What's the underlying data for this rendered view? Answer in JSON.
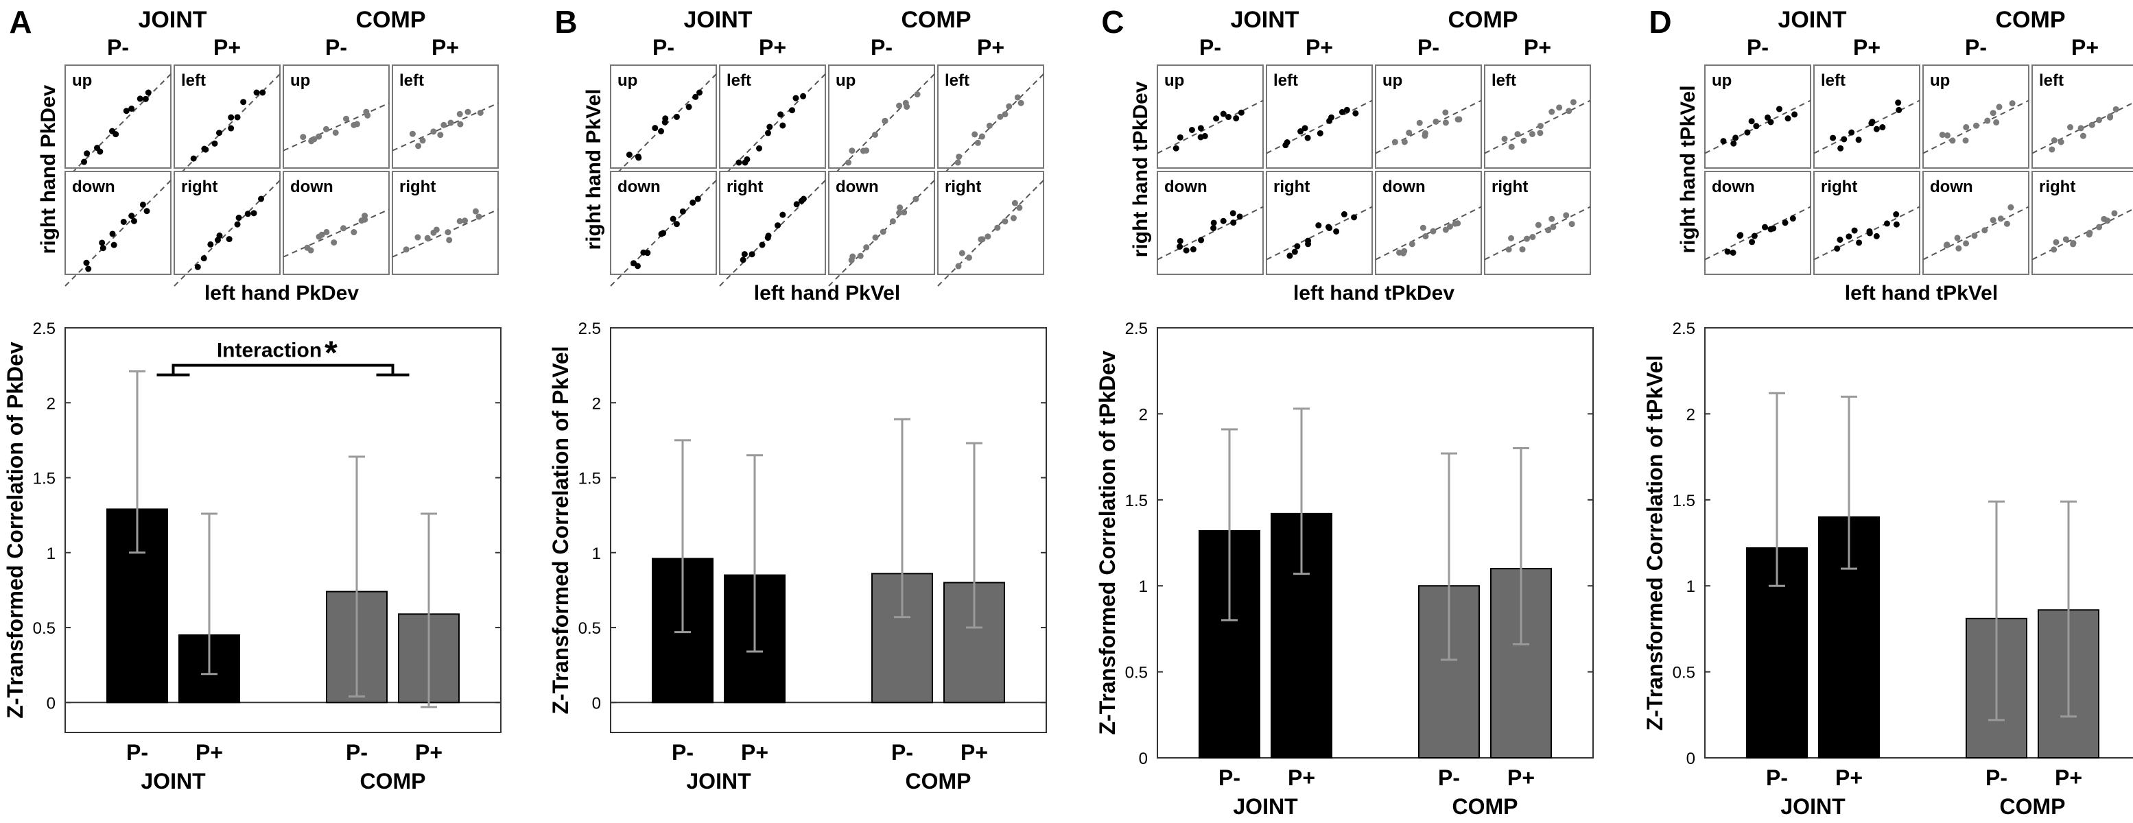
{
  "figure": {
    "colors": {
      "joint_bar": "#000000",
      "comp_bar": "#6b6b6b",
      "error_bar": "#9a9a9a",
      "joint_dot": "#000000",
      "comp_dot": "#7a7a7a",
      "dash": "#555555",
      "axis": "#333333",
      "scatter_border": "#777777"
    },
    "scatter_group_headers": [
      "JOINT",
      "COMP"
    ],
    "scatter_sub_headers": [
      "P-",
      "P+",
      "P-",
      "P+"
    ],
    "scatter_direction_labels": [
      [
        "up",
        "left",
        "up",
        "left"
      ],
      [
        "down",
        "right",
        "down",
        "right"
      ]
    ]
  },
  "chart_data": [
    {
      "panel": "A",
      "type": "bar",
      "title": "",
      "scatter_ylabel": "right hand PkDev",
      "scatter_xlabel": "left hand PkDev",
      "ylabel": "Z-Transformed Correlation of PkDev",
      "xlabel": "",
      "categories": [
        "P-",
        "P+",
        "P-",
        "P+"
      ],
      "groups": [
        "JOINT",
        "COMP"
      ],
      "values": [
        1.29,
        0.45,
        0.74,
        0.59
      ],
      "error_low": [
        1.0,
        0.19,
        0.04,
        -0.03
      ],
      "error_high": [
        2.21,
        1.26,
        1.64,
        1.26
      ],
      "ylim": [
        -0.2,
        2.5
      ],
      "yticks": [
        0,
        0.5,
        1,
        1.5,
        2,
        2.5
      ],
      "ytick_labels": [
        "0",
        "0.5",
        "1",
        "1.5",
        "2",
        "2.5"
      ],
      "zero_line": true,
      "annotation": {
        "text": "Interaction",
        "mark": "*",
        "y": 2.25
      }
    },
    {
      "panel": "B",
      "type": "bar",
      "title": "",
      "scatter_ylabel": "right hand PkVel",
      "scatter_xlabel": "left hand PkVel",
      "ylabel": "Z-Transformed Correlation of PkVel",
      "xlabel": "",
      "categories": [
        "P-",
        "P+",
        "P-",
        "P+"
      ],
      "groups": [
        "JOINT",
        "COMP"
      ],
      "values": [
        0.96,
        0.85,
        0.86,
        0.8
      ],
      "error_low": [
        0.47,
        0.34,
        0.57,
        0.5
      ],
      "error_high": [
        1.75,
        1.65,
        1.89,
        1.73
      ],
      "ylim": [
        -0.2,
        2.5
      ],
      "yticks": [
        0,
        0.5,
        1,
        1.5,
        2,
        2.5
      ],
      "ytick_labels": [
        "0",
        "0.5",
        "1",
        "1.5",
        "2",
        "2.5"
      ],
      "zero_line": true,
      "annotation": null
    },
    {
      "panel": "C",
      "type": "bar",
      "title": "",
      "scatter_ylabel": "right hand tPkDev",
      "scatter_xlabel": "left hand tPkDev",
      "ylabel": "Z-Transformed Correlation of tPkDev",
      "xlabel": "",
      "categories": [
        "P-",
        "P+",
        "P-",
        "P+"
      ],
      "groups": [
        "JOINT",
        "COMP"
      ],
      "values": [
        1.32,
        1.42,
        1.0,
        1.1
      ],
      "error_low": [
        0.8,
        1.07,
        0.57,
        0.66
      ],
      "error_high": [
        1.91,
        2.03,
        1.77,
        1.8
      ],
      "ylim": [
        0,
        2.5
      ],
      "yticks": [
        0,
        0.5,
        1,
        1.5,
        2,
        2.5
      ],
      "ytick_labels": [
        "0",
        "0.5",
        "1",
        "1.5",
        "2",
        "2.5"
      ],
      "zero_line": false,
      "annotation": null
    },
    {
      "panel": "D",
      "type": "bar",
      "title": "",
      "scatter_ylabel": "right hand tPkVel",
      "scatter_xlabel": "left hand tPkVel",
      "ylabel": "Z-Transformed Correlation of tPkVel",
      "xlabel": "",
      "categories": [
        "P-",
        "P+",
        "P-",
        "P+"
      ],
      "groups": [
        "JOINT",
        "COMP"
      ],
      "values": [
        1.22,
        1.4,
        0.81,
        0.86
      ],
      "error_low": [
        1.0,
        1.1,
        0.22,
        0.24
      ],
      "error_high": [
        2.12,
        2.1,
        1.49,
        1.49
      ],
      "ylim": [
        0,
        2.5
      ],
      "yticks": [
        0,
        0.5,
        1,
        1.5,
        2,
        2.5
      ],
      "ytick_labels": [
        "0",
        "0.5",
        "1",
        "1.5",
        "2",
        "2.5"
      ],
      "zero_line": false,
      "annotation": null
    }
  ]
}
